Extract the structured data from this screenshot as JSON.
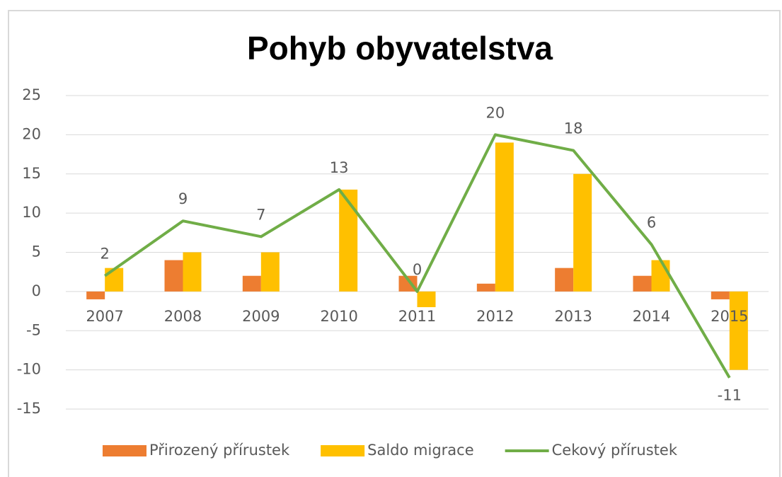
{
  "chart_data": {
    "type": "bar",
    "title": "Pohyb obyvatelstva",
    "categories": [
      "2007",
      "2008",
      "2009",
      "2010",
      "2011",
      "2012",
      "2013",
      "2014",
      "2015"
    ],
    "series": [
      {
        "name": "Přirozený přírustek",
        "type": "bar",
        "color": "#ed7d31",
        "values": [
          -1,
          4,
          2,
          0,
          2,
          1,
          3,
          2,
          -1
        ]
      },
      {
        "name": "Saldo migrace",
        "type": "bar",
        "color": "#ffc000",
        "values": [
          3,
          5,
          5,
          13,
          -2,
          19,
          15,
          4,
          -10
        ]
      },
      {
        "name": "Cekový přírustek",
        "type": "line",
        "color": "#70ad47",
        "values": [
          2,
          9,
          7,
          13,
          0,
          20,
          18,
          6,
          -11
        ],
        "data_labels": true
      }
    ],
    "ylim": [
      -15,
      25
    ],
    "yticks": [
      -15,
      -10,
      -5,
      0,
      5,
      10,
      15,
      20,
      25
    ],
    "grid": true,
    "legend": "bottom"
  }
}
